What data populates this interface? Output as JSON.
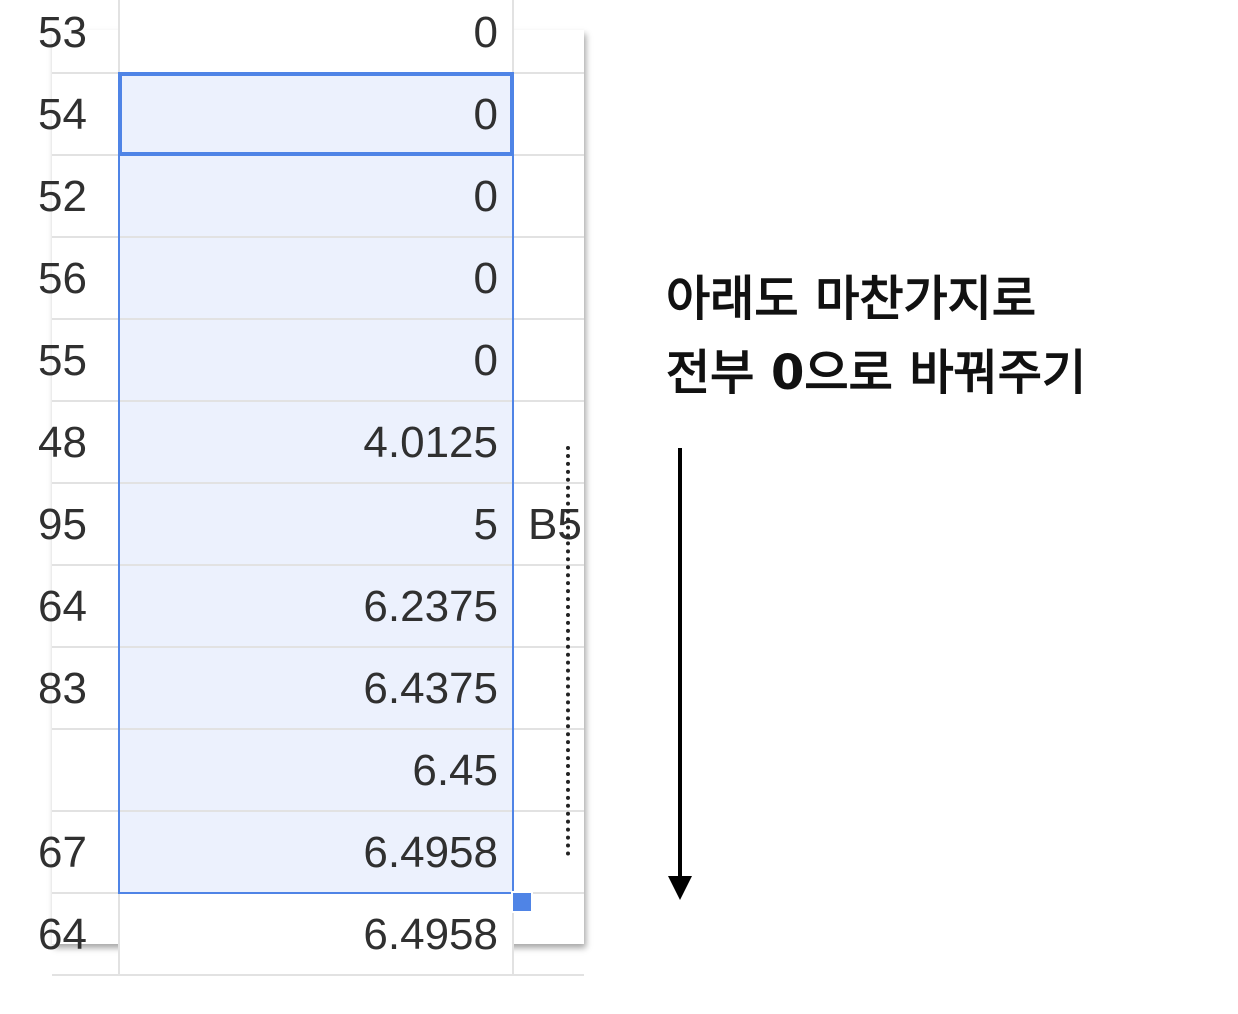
{
  "sheet": {
    "rows": [
      {
        "left": "53",
        "value": "0",
        "right": ""
      },
      {
        "left": "54",
        "value": "0",
        "right": ""
      },
      {
        "left": "52",
        "value": "0",
        "right": ""
      },
      {
        "left": "56",
        "value": "0",
        "right": ""
      },
      {
        "left": "55",
        "value": "0",
        "right": ""
      },
      {
        "left": "48",
        "value": "4.0125",
        "right": ""
      },
      {
        "left": "95",
        "value": "5",
        "right": "B5"
      },
      {
        "left": "64",
        "value": "6.2375",
        "right": ""
      },
      {
        "left": "83",
        "value": "6.4375",
        "right": ""
      },
      {
        "left": "",
        "value": "6.45",
        "right": ""
      },
      {
        "left": "67",
        "value": "6.4958",
        "right": ""
      },
      {
        "left": "64",
        "value": "6.4958",
        "right": ""
      }
    ]
  },
  "caption": {
    "line1": "아래도 마찬가지로",
    "line2": "전부 0으로 바꿔주기"
  },
  "colors": {
    "selection_border": "#4f84e6",
    "selection_fill": "#ecf1fd",
    "grid_line": "#e2e2e2"
  }
}
